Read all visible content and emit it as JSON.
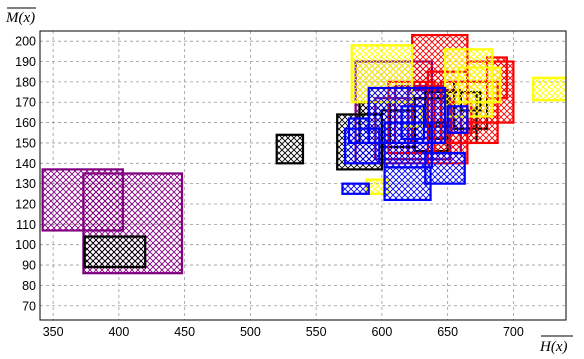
{
  "chart_data": {
    "type": "rectangle-plot",
    "xlabel": "H(x)",
    "ylabel": "M(x)",
    "xlim": [
      340,
      740
    ],
    "ylim": [
      63,
      205
    ],
    "x_ticks": [
      350,
      400,
      450,
      500,
      550,
      600,
      650,
      700
    ],
    "y_ticks": [
      70,
      80,
      90,
      100,
      110,
      120,
      130,
      140,
      150,
      160,
      170,
      180,
      190,
      200
    ],
    "grid": true,
    "series": [
      {
        "color": "#800080",
        "pattern": "crosshatch",
        "rects": [
          [
            342,
            403,
            107,
            137
          ],
          [
            373,
            448,
            86,
            135
          ],
          [
            580,
            638,
            140,
            190
          ],
          [
            595,
            652,
            142,
            172
          ],
          [
            620,
            660,
            145,
            176
          ],
          [
            610,
            648,
            150,
            178
          ]
        ]
      },
      {
        "color": "#000000",
        "pattern": "crosshatch",
        "rects": [
          [
            374,
            420,
            89,
            104
          ],
          [
            520,
            540,
            140,
            154
          ],
          [
            566,
            600,
            137,
            164
          ],
          [
            583,
            606,
            150,
            170
          ],
          [
            600,
            625,
            148,
            166
          ],
          [
            625,
            650,
            146,
            172
          ],
          [
            645,
            672,
            150,
            175
          ],
          [
            655,
            680,
            157,
            180
          ],
          [
            633,
            650,
            158,
            175
          ],
          [
            660,
            675,
            166,
            175
          ],
          [
            636,
            648,
            152,
            160
          ]
        ]
      },
      {
        "color": "#FF0000",
        "pattern": "crosshatch",
        "rects": [
          [
            623,
            665,
            150,
            203
          ],
          [
            605,
            640,
            145,
            180
          ],
          [
            635,
            665,
            140,
            185
          ],
          [
            645,
            688,
            150,
            180
          ],
          [
            665,
            700,
            160,
            190
          ],
          [
            680,
            695,
            172,
            192
          ],
          [
            653,
            668,
            155,
            170
          ]
        ]
      },
      {
        "color": "#FFFF00",
        "pattern": "crosshatch",
        "rects": [
          [
            577,
            623,
            170,
            198
          ],
          [
            648,
            684,
            163,
            196
          ],
          [
            658,
            690,
            170,
            187
          ],
          [
            588,
            605,
            125,
            132
          ],
          [
            715,
            740,
            171,
            182
          ],
          [
            615,
            630,
            158,
            168
          ]
        ]
      },
      {
        "color": "#0000FF",
        "pattern": "crosshatch",
        "rects": [
          [
            572,
            598,
            140,
            157
          ],
          [
            602,
            637,
            122,
            138
          ],
          [
            590,
            648,
            150,
            177
          ],
          [
            602,
            638,
            138,
            160
          ],
          [
            633,
            663,
            130,
            145
          ],
          [
            575,
            590,
            150,
            162
          ],
          [
            615,
            632,
            152,
            168
          ],
          [
            650,
            665,
            155,
            168
          ],
          [
            570,
            590,
            125,
            130
          ]
        ]
      }
    ]
  }
}
